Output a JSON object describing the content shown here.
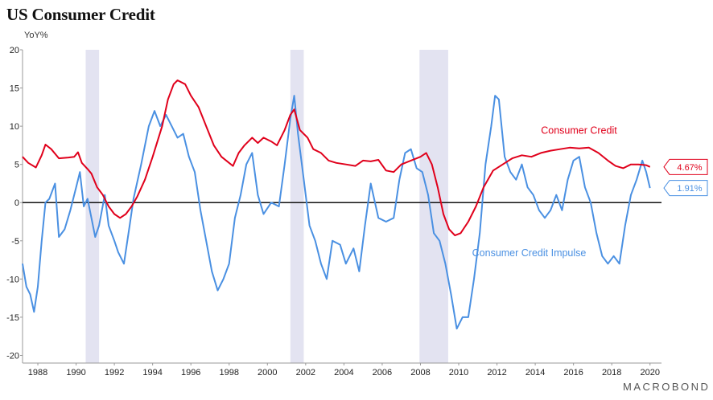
{
  "header": {
    "title": "US Consumer Credit",
    "unit": "YoY%"
  },
  "footer": {
    "brand": "MACROBOND"
  },
  "chart_data": {
    "type": "line",
    "title": "US Consumer Credit",
    "ylabel": "YoY%",
    "xlim": [
      1987.2,
      2020.6
    ],
    "ylim": [
      -21,
      20
    ],
    "yticks": [
      -20,
      -15,
      -10,
      -5,
      0,
      5,
      10,
      15,
      20
    ],
    "xticks": [
      1988,
      1990,
      1992,
      1994,
      1996,
      1998,
      2000,
      2002,
      2004,
      2006,
      2008,
      2010,
      2012,
      2014,
      2016,
      2018,
      2020
    ],
    "recessions": [
      [
        1990.5,
        1991.2
      ],
      [
        2001.2,
        2001.9
      ],
      [
        2007.95,
        2009.45
      ]
    ],
    "series": [
      {
        "name": "Consumer Credit",
        "color": "#e0001b",
        "last_value_label": "4.67%",
        "values": [
          [
            1987.2,
            6.0
          ],
          [
            1987.5,
            5.2
          ],
          [
            1987.9,
            4.6
          ],
          [
            1988.2,
            6.2
          ],
          [
            1988.4,
            7.6
          ],
          [
            1988.7,
            7.0
          ],
          [
            1989.1,
            5.8
          ],
          [
            1989.6,
            5.9
          ],
          [
            1989.9,
            6.0
          ],
          [
            1990.1,
            6.6
          ],
          [
            1990.3,
            5.2
          ],
          [
            1990.6,
            4.4
          ],
          [
            1990.8,
            3.8
          ],
          [
            1991.1,
            2.0
          ],
          [
            1991.4,
            1.0
          ],
          [
            1991.7,
            -0.5
          ],
          [
            1992.0,
            -1.5
          ],
          [
            1992.3,
            -2.0
          ],
          [
            1992.6,
            -1.5
          ],
          [
            1992.9,
            -0.5
          ],
          [
            1993.2,
            0.8
          ],
          [
            1993.6,
            3.0
          ],
          [
            1994.0,
            6.0
          ],
          [
            1994.5,
            10.0
          ],
          [
            1994.8,
            13.5
          ],
          [
            1995.1,
            15.5
          ],
          [
            1995.3,
            16.0
          ],
          [
            1995.7,
            15.5
          ],
          [
            1996.0,
            14.0
          ],
          [
            1996.4,
            12.5
          ],
          [
            1996.8,
            10.0
          ],
          [
            1997.2,
            7.5
          ],
          [
            1997.6,
            6.0
          ],
          [
            1998.0,
            5.2
          ],
          [
            1998.2,
            4.8
          ],
          [
            1998.5,
            6.5
          ],
          [
            1998.8,
            7.5
          ],
          [
            1999.2,
            8.5
          ],
          [
            1999.5,
            7.8
          ],
          [
            1999.8,
            8.5
          ],
          [
            2000.2,
            8.0
          ],
          [
            2000.5,
            7.5
          ],
          [
            2000.9,
            9.5
          ],
          [
            2001.2,
            11.5
          ],
          [
            2001.4,
            12.2
          ],
          [
            2001.7,
            9.5
          ],
          [
            2002.1,
            8.5
          ],
          [
            2002.4,
            7.0
          ],
          [
            2002.8,
            6.5
          ],
          [
            2003.2,
            5.5
          ],
          [
            2003.6,
            5.2
          ],
          [
            2004.1,
            5.0
          ],
          [
            2004.6,
            4.8
          ],
          [
            2005.0,
            5.5
          ],
          [
            2005.4,
            5.4
          ],
          [
            2005.8,
            5.6
          ],
          [
            2006.2,
            4.2
          ],
          [
            2006.6,
            4.0
          ],
          [
            2007.0,
            5.0
          ],
          [
            2007.5,
            5.5
          ],
          [
            2008.0,
            6.0
          ],
          [
            2008.3,
            6.5
          ],
          [
            2008.6,
            5.0
          ],
          [
            2008.9,
            2.0
          ],
          [
            2009.2,
            -1.5
          ],
          [
            2009.5,
            -3.5
          ],
          [
            2009.8,
            -4.3
          ],
          [
            2010.1,
            -4.0
          ],
          [
            2010.5,
            -2.5
          ],
          [
            2010.9,
            -0.5
          ],
          [
            2011.3,
            2.0
          ],
          [
            2011.8,
            4.2
          ],
          [
            2012.3,
            5.0
          ],
          [
            2012.8,
            5.8
          ],
          [
            2013.3,
            6.2
          ],
          [
            2013.8,
            6.0
          ],
          [
            2014.3,
            6.5
          ],
          [
            2014.8,
            6.8
          ],
          [
            2015.3,
            7.0
          ],
          [
            2015.8,
            7.2
          ],
          [
            2016.3,
            7.1
          ],
          [
            2016.8,
            7.2
          ],
          [
            2017.3,
            6.5
          ],
          [
            2017.8,
            5.5
          ],
          [
            2018.2,
            4.8
          ],
          [
            2018.6,
            4.5
          ],
          [
            2019.0,
            5.0
          ],
          [
            2019.4,
            5.0
          ],
          [
            2019.8,
            4.9
          ],
          [
            2020.0,
            4.67
          ]
        ]
      },
      {
        "name": "Consumer Credit Impulse",
        "color": "#4a90e2",
        "last_value_label": "1.91%",
        "values": [
          [
            1987.2,
            -8.0
          ],
          [
            1987.4,
            -11.0
          ],
          [
            1987.6,
            -12.0
          ],
          [
            1987.8,
            -14.3
          ],
          [
            1988.0,
            -11.0
          ],
          [
            1988.2,
            -5.0
          ],
          [
            1988.4,
            0.0
          ],
          [
            1988.6,
            0.5
          ],
          [
            1988.9,
            2.5
          ],
          [
            1989.1,
            -4.5
          ],
          [
            1989.4,
            -3.5
          ],
          [
            1989.7,
            -1.0
          ],
          [
            1990.0,
            2.0
          ],
          [
            1990.2,
            4.0
          ],
          [
            1990.4,
            -0.5
          ],
          [
            1990.6,
            0.5
          ],
          [
            1990.8,
            -2.0
          ],
          [
            1991.0,
            -4.5
          ],
          [
            1991.2,
            -3.0
          ],
          [
            1991.5,
            1.0
          ],
          [
            1991.7,
            -3.0
          ],
          [
            1992.0,
            -5.0
          ],
          [
            1992.2,
            -6.5
          ],
          [
            1992.5,
            -8.0
          ],
          [
            1992.8,
            -3.0
          ],
          [
            1993.0,
            0.5
          ],
          [
            1993.4,
            5.0
          ],
          [
            1993.8,
            10.0
          ],
          [
            1994.1,
            12.0
          ],
          [
            1994.4,
            10.0
          ],
          [
            1994.7,
            11.5
          ],
          [
            1995.0,
            10.0
          ],
          [
            1995.3,
            8.5
          ],
          [
            1995.6,
            9.0
          ],
          [
            1995.9,
            6.0
          ],
          [
            1996.2,
            4.0
          ],
          [
            1996.5,
            -1.0
          ],
          [
            1996.8,
            -5.0
          ],
          [
            1997.1,
            -9.0
          ],
          [
            1997.4,
            -11.5
          ],
          [
            1997.7,
            -10.0
          ],
          [
            1998.0,
            -8.0
          ],
          [
            1998.3,
            -2.0
          ],
          [
            1998.6,
            1.0
          ],
          [
            1998.9,
            5.0
          ],
          [
            1999.2,
            6.5
          ],
          [
            1999.5,
            1.0
          ],
          [
            1999.8,
            -1.5
          ],
          [
            2000.2,
            0.0
          ],
          [
            2000.6,
            -0.5
          ],
          [
            2000.9,
            5.0
          ],
          [
            2001.2,
            11.0
          ],
          [
            2001.4,
            14.0
          ],
          [
            2001.6,
            9.0
          ],
          [
            2001.9,
            3.0
          ],
          [
            2002.2,
            -3.0
          ],
          [
            2002.5,
            -5.0
          ],
          [
            2002.8,
            -8.0
          ],
          [
            2003.1,
            -10.0
          ],
          [
            2003.4,
            -5.0
          ],
          [
            2003.8,
            -5.5
          ],
          [
            2004.1,
            -8.0
          ],
          [
            2004.5,
            -6.0
          ],
          [
            2004.8,
            -9.0
          ],
          [
            2005.1,
            -3.0
          ],
          [
            2005.4,
            2.5
          ],
          [
            2005.8,
            -2.0
          ],
          [
            2006.2,
            -2.5
          ],
          [
            2006.6,
            -2.0
          ],
          [
            2006.9,
            3.0
          ],
          [
            2007.2,
            6.5
          ],
          [
            2007.5,
            7.0
          ],
          [
            2007.8,
            4.5
          ],
          [
            2008.1,
            4.0
          ],
          [
            2008.4,
            1.0
          ],
          [
            2008.7,
            -4.0
          ],
          [
            2009.0,
            -5.0
          ],
          [
            2009.3,
            -8.0
          ],
          [
            2009.6,
            -12.0
          ],
          [
            2009.9,
            -16.5
          ],
          [
            2010.2,
            -15.0
          ],
          [
            2010.5,
            -15.0
          ],
          [
            2010.8,
            -10.0
          ],
          [
            2011.1,
            -4.0
          ],
          [
            2011.4,
            5.0
          ],
          [
            2011.7,
            10.0
          ],
          [
            2011.9,
            14.0
          ],
          [
            2012.1,
            13.5
          ],
          [
            2012.4,
            6.0
          ],
          [
            2012.7,
            4.0
          ],
          [
            2013.0,
            3.0
          ],
          [
            2013.3,
            5.0
          ],
          [
            2013.6,
            2.0
          ],
          [
            2013.9,
            1.0
          ],
          [
            2014.2,
            -1.0
          ],
          [
            2014.5,
            -2.0
          ],
          [
            2014.8,
            -1.0
          ],
          [
            2015.1,
            1.0
          ],
          [
            2015.4,
            -1.0
          ],
          [
            2015.7,
            3.0
          ],
          [
            2016.0,
            5.5
          ],
          [
            2016.3,
            6.0
          ],
          [
            2016.6,
            2.0
          ],
          [
            2016.9,
            0.0
          ],
          [
            2017.2,
            -4.0
          ],
          [
            2017.5,
            -7.0
          ],
          [
            2017.8,
            -8.0
          ],
          [
            2018.1,
            -7.0
          ],
          [
            2018.4,
            -8.0
          ],
          [
            2018.7,
            -3.0
          ],
          [
            2019.0,
            1.0
          ],
          [
            2019.3,
            3.0
          ],
          [
            2019.6,
            5.5
          ],
          [
            2019.8,
            4.0
          ],
          [
            2020.0,
            1.91
          ]
        ]
      }
    ],
    "annotations": [
      {
        "text": "Consumer Credit",
        "x": 2014.3,
        "y": 9.0,
        "color": "#e0001b"
      },
      {
        "text": "Consumer Credit Impulse",
        "x": 2010.7,
        "y": -7.0,
        "color": "#4a90e2"
      }
    ]
  }
}
